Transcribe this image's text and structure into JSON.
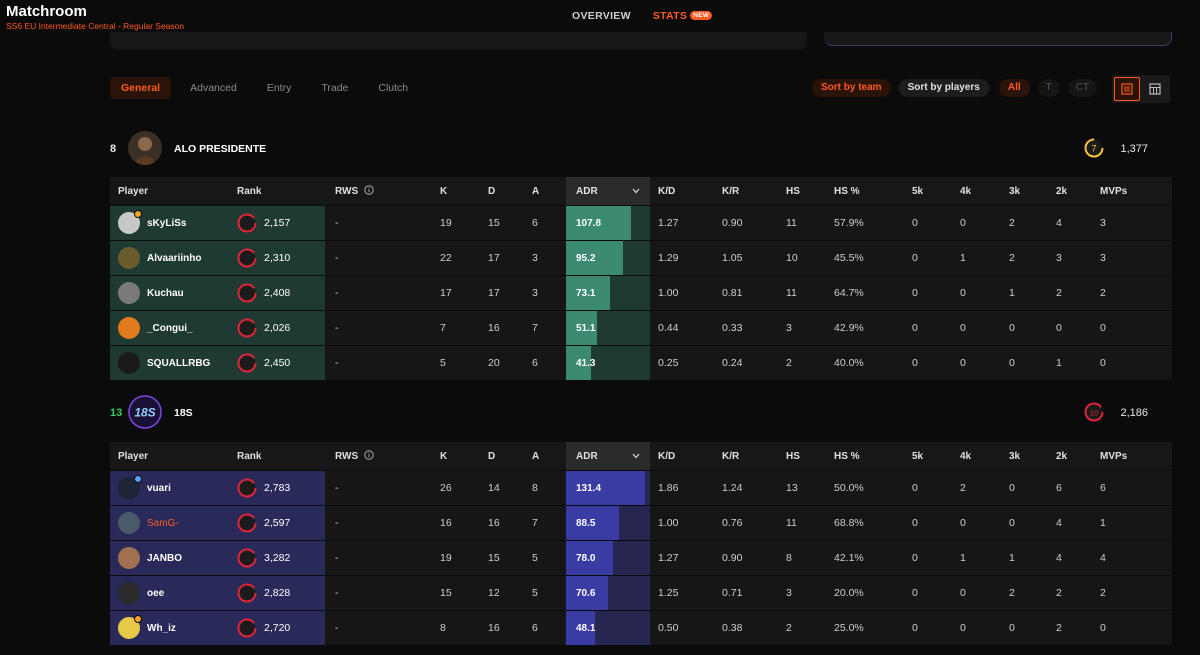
{
  "header": {
    "title": "Matchroom",
    "subtitle": "SS6 EU Intermediate Central - Regular Season",
    "tabs": [
      {
        "label": "OVERVIEW"
      },
      {
        "label": "STATS",
        "badge": "NEW"
      }
    ]
  },
  "filters": {
    "tabs": [
      "General",
      "Advanced",
      "Entry",
      "Trade",
      "Clutch"
    ],
    "sort_team": "Sort by team",
    "sort_players": "Sort by players",
    "side": [
      "All",
      "T",
      "CT"
    ]
  },
  "columns": {
    "player": "Player",
    "rank": "Rank",
    "rws": "RWS",
    "k": "K",
    "d": "D",
    "a": "A",
    "adr": "ADR",
    "kd": "K/D",
    "kr": "K/R",
    "hs": "HS",
    "hsp": "HS %",
    "k5": "5k",
    "k4": "4k",
    "k3": "3k",
    "k2": "2k",
    "mvp": "MVPs"
  },
  "teams": [
    {
      "score": "8",
      "name": "ALO PRESIDENTE",
      "elo_level": "7",
      "elo": "1,377",
      "colors": {
        "score": "#ffffff",
        "level": "#f5c33b"
      },
      "players": [
        {
          "name": "sKyLiSs",
          "level": "10",
          "elo": "2,157",
          "rws": "-",
          "k": "19",
          "d": "15",
          "a": "6",
          "adr": "107.8",
          "kd": "1.27",
          "kr": "0.90",
          "hs": "11",
          "hsp": "57.9%",
          "k5": "0",
          "k4": "0",
          "k3": "2",
          "k2": "4",
          "mvp": "3",
          "av": "#c8c8c8"
        },
        {
          "name": "Alvaariinho",
          "level": "10",
          "elo": "2,310",
          "rws": "-",
          "k": "22",
          "d": "17",
          "a": "3",
          "adr": "95.2",
          "kd": "1.29",
          "kr": "1.05",
          "hs": "10",
          "hsp": "45.5%",
          "k5": "0",
          "k4": "1",
          "k3": "2",
          "k2": "3",
          "mvp": "3",
          "av": "#6b5a2e"
        },
        {
          "name": "Kuchau",
          "level": "10",
          "elo": "2,408",
          "rws": "-",
          "k": "17",
          "d": "17",
          "a": "3",
          "adr": "73.1",
          "kd": "1.00",
          "kr": "0.81",
          "hs": "11",
          "hsp": "64.7%",
          "k5": "0",
          "k4": "0",
          "k3": "1",
          "k2": "2",
          "mvp": "2",
          "av": "#7a7a7a"
        },
        {
          "name": "_Congui_",
          "level": "10",
          "elo": "2,026",
          "rws": "-",
          "k": "7",
          "d": "16",
          "a": "7",
          "adr": "51.1",
          "kd": "0.44",
          "kr": "0.33",
          "hs": "3",
          "hsp": "42.9%",
          "k5": "0",
          "k4": "0",
          "k3": "0",
          "k2": "0",
          "mvp": "0",
          "av": "#e07a1e"
        },
        {
          "name": "SQUALLRBG",
          "level": "10",
          "elo": "2,450",
          "rws": "-",
          "k": "5",
          "d": "20",
          "a": "6",
          "adr": "41.3",
          "kd": "0.25",
          "kr": "0.24",
          "hs": "2",
          "hsp": "40.0%",
          "k5": "0",
          "k4": "0",
          "k3": "0",
          "k2": "1",
          "mvp": "0",
          "av": "#1a1a1a"
        }
      ]
    },
    {
      "score": "13",
      "name": "18S",
      "logo_text": "18S",
      "elo_level": "10",
      "elo": "2,186",
      "colors": {
        "score": "#3ccc5a",
        "level": "#e0243a"
      },
      "players": [
        {
          "name": "vuari",
          "level": "10",
          "elo": "2,783",
          "rws": "-",
          "k": "26",
          "d": "14",
          "a": "8",
          "adr": "131.4",
          "kd": "1.86",
          "kr": "1.24",
          "hs": "13",
          "hsp": "50.0%",
          "k5": "0",
          "k4": "2",
          "k3": "0",
          "k2": "6",
          "mvp": "6",
          "av": "#1c2436"
        },
        {
          "name": "SamG-",
          "level": "10",
          "elo": "2,597",
          "rws": "-",
          "k": "16",
          "d": "16",
          "a": "7",
          "adr": "88.5",
          "kd": "1.00",
          "kr": "0.76",
          "hs": "11",
          "hsp": "68.8%",
          "k5": "0",
          "k4": "0",
          "k3": "0",
          "k2": "4",
          "mvp": "1",
          "av": "#4a5a6a",
          "highlight": true
        },
        {
          "name": "JANBO",
          "level": "10",
          "elo": "3,282",
          "rws": "-",
          "k": "19",
          "d": "15",
          "a": "5",
          "adr": "78.0",
          "kd": "1.27",
          "kr": "0.90",
          "hs": "8",
          "hsp": "42.1%",
          "k5": "0",
          "k4": "1",
          "k3": "1",
          "k2": "4",
          "mvp": "4",
          "av": "#a07050"
        },
        {
          "name": "oee",
          "level": "10",
          "elo": "2,828",
          "rws": "-",
          "k": "15",
          "d": "12",
          "a": "5",
          "adr": "70.6",
          "kd": "1.25",
          "kr": "0.71",
          "hs": "3",
          "hsp": "20.0%",
          "k5": "0",
          "k4": "0",
          "k3": "2",
          "k2": "2",
          "mvp": "2",
          "av": "#2a2a2a"
        },
        {
          "name": "Wh_iz",
          "level": "10",
          "elo": "2,720",
          "rws": "-",
          "k": "8",
          "d": "16",
          "a": "6",
          "adr": "48.1",
          "kd": "0.50",
          "kr": "0.38",
          "hs": "2",
          "hsp": "25.0%",
          "k5": "0",
          "k4": "0",
          "k3": "0",
          "k2": "2",
          "mvp": "0",
          "av": "#e8c848"
        }
      ]
    }
  ],
  "adr_scale_max": 140,
  "colors": {
    "accent": "#ff5a1f",
    "team_a": "#3c8a71",
    "team_b": "#3b3ba4"
  }
}
